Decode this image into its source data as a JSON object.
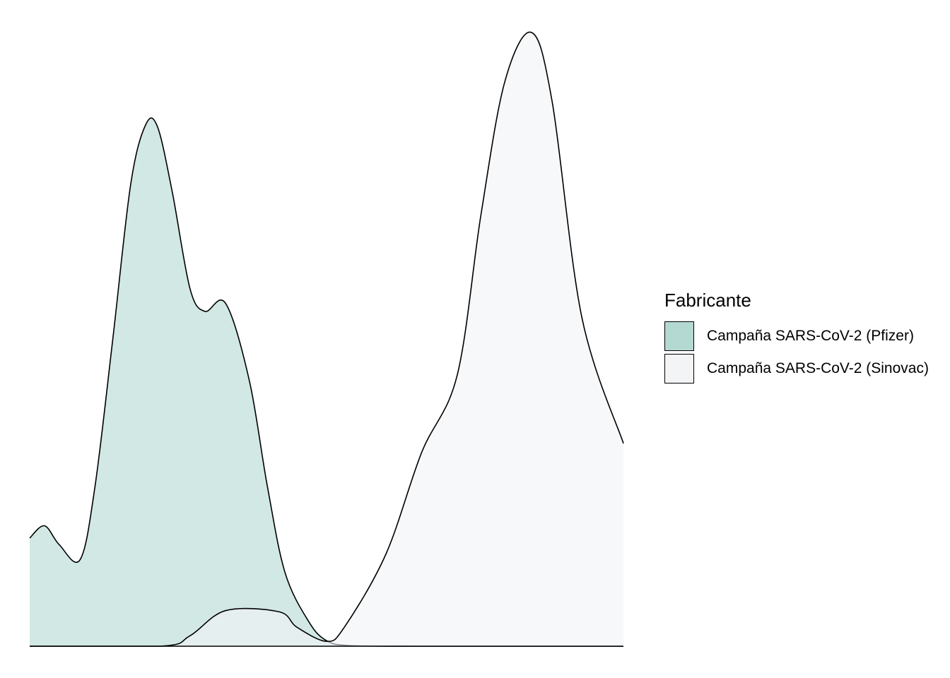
{
  "chart_data": {
    "type": "area",
    "subtype": "density",
    "title": "",
    "xlabel": "",
    "ylabel": "",
    "axes_visible": false,
    "grid": false,
    "legend": {
      "title": "Fabricante",
      "position": "right",
      "entries": [
        "Campaña SARS-CoV-2 (Pfizer)",
        "Campaña SARS-CoV-2 (Sinovac)"
      ]
    },
    "xlim": [
      0,
      1
    ],
    "ylim": [
      0,
      1
    ],
    "series": [
      {
        "name": "Campaña SARS-CoV-2 (Pfizer)",
        "color": "#b3d9d2",
        "points": [
          [
            0.0,
            0.176
          ],
          [
            0.025,
            0.196
          ],
          [
            0.05,
            0.165
          ],
          [
            0.085,
            0.141
          ],
          [
            0.11,
            0.26
          ],
          [
            0.14,
            0.5
          ],
          [
            0.17,
            0.751
          ],
          [
            0.195,
            0.848
          ],
          [
            0.215,
            0.846
          ],
          [
            0.24,
            0.74
          ],
          [
            0.27,
            0.582
          ],
          [
            0.295,
            0.545
          ],
          [
            0.33,
            0.558
          ],
          [
            0.37,
            0.432
          ],
          [
            0.4,
            0.262
          ],
          [
            0.43,
            0.12
          ],
          [
            0.47,
            0.04
          ],
          [
            0.5,
            0.009
          ],
          [
            0.54,
            0.001
          ],
          [
            0.65,
            0.0
          ],
          [
            1.0,
            0.0
          ]
        ]
      },
      {
        "name": "Campaña SARS-CoV-2 (Sinovac)",
        "color": "#f2f4f6",
        "points": [
          [
            0.0,
            0.0
          ],
          [
            0.22,
            0.0
          ],
          [
            0.27,
            0.017
          ],
          [
            0.33,
            0.058
          ],
          [
            0.42,
            0.056
          ],
          [
            0.45,
            0.031
          ],
          [
            0.5,
            0.008
          ],
          [
            0.53,
            0.031
          ],
          [
            0.6,
            0.15
          ],
          [
            0.66,
            0.315
          ],
          [
            0.72,
            0.441
          ],
          [
            0.76,
            0.702
          ],
          [
            0.8,
            0.918
          ],
          [
            0.845,
            0.999
          ],
          [
            0.88,
            0.886
          ],
          [
            0.93,
            0.535
          ],
          [
            1.0,
            0.33
          ]
        ]
      }
    ]
  }
}
